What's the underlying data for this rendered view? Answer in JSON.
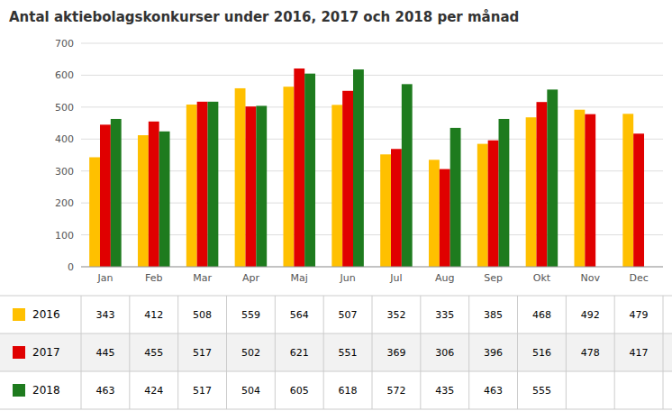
{
  "chart_data": {
    "type": "bar",
    "title": "Antal aktiebolagskonkurser under 2016, 2017 och 2018 per månad",
    "categories": [
      "Jan",
      "Feb",
      "Mar",
      "Apr",
      "Maj",
      "Jun",
      "Jul",
      "Aug",
      "Sep",
      "Okt",
      "Nov",
      "Dec"
    ],
    "series": [
      {
        "name": "2016",
        "color": "#FFC000",
        "values": [
          343,
          412,
          508,
          559,
          564,
          507,
          352,
          335,
          385,
          468,
          492,
          479
        ]
      },
      {
        "name": "2017",
        "color": "#E00000",
        "values": [
          445,
          455,
          517,
          502,
          621,
          551,
          369,
          306,
          396,
          516,
          478,
          417
        ]
      },
      {
        "name": "2018",
        "color": "#1E7B1E",
        "values": [
          463,
          424,
          517,
          504,
          605,
          618,
          572,
          435,
          463,
          555,
          null,
          null
        ]
      }
    ],
    "ylim": [
      0,
      700
    ],
    "yticks": [
      0,
      100,
      200,
      300,
      400,
      500,
      600,
      700
    ],
    "grid": true
  }
}
